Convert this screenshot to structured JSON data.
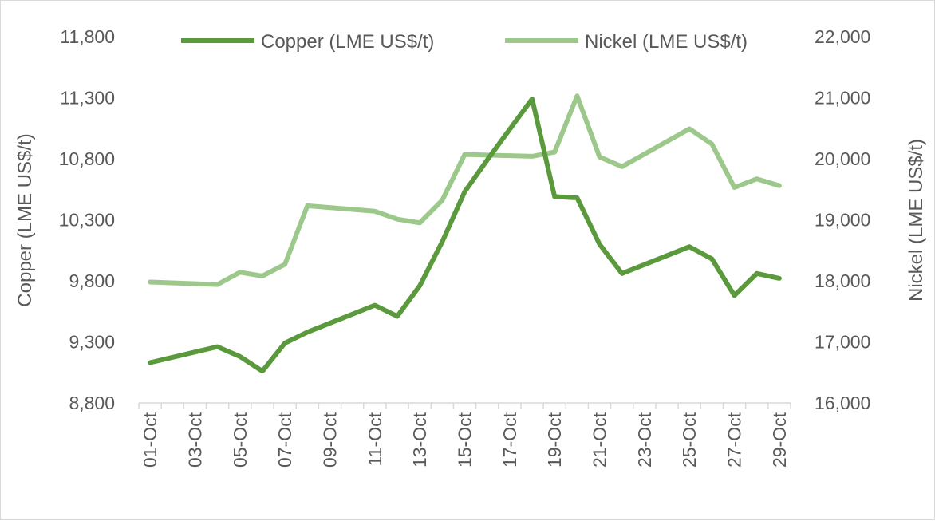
{
  "chart_data": {
    "type": "line",
    "x": [
      "01-Oct",
      "02-Oct",
      "03-Oct",
      "04-Oct",
      "05-Oct",
      "06-Oct",
      "07-Oct",
      "08-Oct",
      "09-Oct",
      "10-Oct",
      "11-Oct",
      "12-Oct",
      "13-Oct",
      "14-Oct",
      "15-Oct",
      "16-Oct",
      "17-Oct",
      "18-Oct",
      "19-Oct",
      "20-Oct",
      "21-Oct",
      "22-Oct",
      "23-Oct",
      "24-Oct",
      "25-Oct",
      "26-Oct",
      "27-Oct",
      "28-Oct",
      "29-Oct"
    ],
    "x_tick_labels": [
      "01-Oct",
      "03-Oct",
      "05-Oct",
      "07-Oct",
      "09-Oct",
      "11-Oct",
      "13-Oct",
      "15-Oct",
      "17-Oct",
      "19-Oct",
      "21-Oct",
      "23-Oct",
      "25-Oct",
      "27-Oct",
      "29-Oct"
    ],
    "series": [
      {
        "name": "Copper (LME US$/t)",
        "axis": "left",
        "color": "#5b9a3c",
        "values": [
          9130,
          null,
          null,
          9260,
          9180,
          9060,
          9290,
          9380,
          null,
          null,
          9600,
          9510,
          9760,
          10120,
          10530,
          10790,
          null,
          11290,
          10490,
          10480,
          10100,
          9860,
          null,
          null,
          10080,
          9980,
          9680,
          9860,
          9820
        ]
      },
      {
        "name": "Nickel (LME US$/t)",
        "axis": "right",
        "color": "#9cc98b",
        "values": [
          17980,
          null,
          null,
          17940,
          18140,
          18080,
          18270,
          19230,
          null,
          null,
          19140,
          19010,
          18950,
          19320,
          20070,
          20060,
          null,
          20040,
          20110,
          21030,
          20030,
          19870,
          null,
          null,
          20490,
          20240,
          19530,
          19670,
          19560
        ]
      }
    ],
    "y_left": {
      "label": "Copper (LME US$/t)",
      "range": [
        8800,
        11800
      ],
      "ticks": [
        "8,800",
        "9,300",
        "9,800",
        "10,300",
        "10,800",
        "11,300",
        "11,800"
      ]
    },
    "y_right": {
      "label": "Nickel (LME US$/t)",
      "range": [
        16000,
        22000
      ],
      "ticks": [
        "16,000",
        "17,000",
        "18,000",
        "19,000",
        "20,000",
        "21,000",
        "22,000"
      ]
    },
    "legend_position": "top",
    "grid": false
  }
}
